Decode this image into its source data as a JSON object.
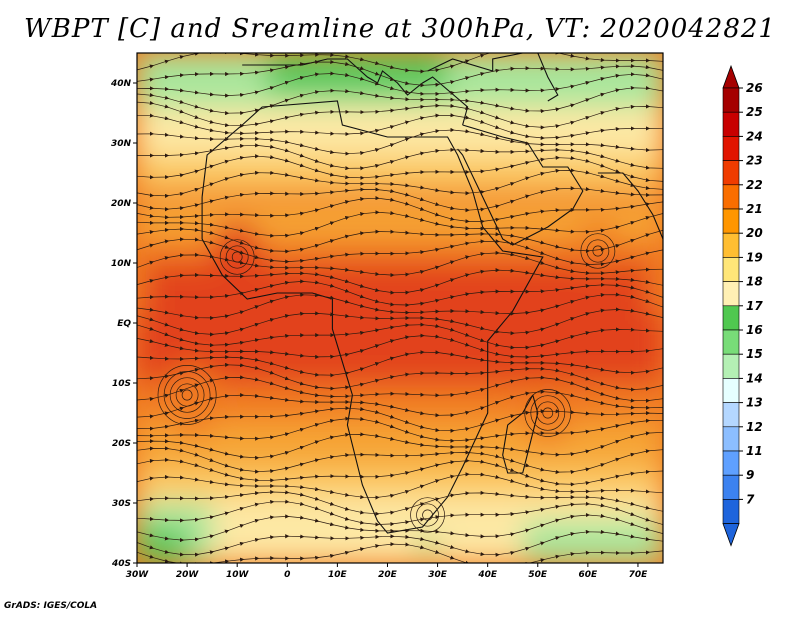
{
  "title": "WBPT [C] and Sreamline at 300hPa, VT: 2020042821",
  "credit": "GrADS: IGES/COLA",
  "map": {
    "variable": "WBPT",
    "units": "C",
    "level": "300hPa",
    "valid_time": "2020042821",
    "lon_range": [
      -30,
      75
    ],
    "lat_range": [
      -40,
      45
    ],
    "lon_ticks": [
      "30W",
      "20W",
      "10W",
      "0",
      "10E",
      "20E",
      "30E",
      "40E",
      "50E",
      "60E",
      "70E"
    ],
    "lat_ticks": [
      "40N",
      "30N",
      "20N",
      "10N",
      "EQ",
      "10S",
      "20S",
      "30S",
      "40S"
    ]
  },
  "colorbar": {
    "levels": [
      "26",
      "25",
      "24",
      "23",
      "22",
      "21",
      "20",
      "19",
      "18",
      "17",
      "16",
      "15",
      "14",
      "13",
      "12",
      "11",
      "9",
      "7"
    ],
    "colors": [
      "#a50000",
      "#c80000",
      "#e11400",
      "#f03c00",
      "#fa6e00",
      "#ff9600",
      "#ffbe32",
      "#ffe678",
      "#fff0b4",
      "#50c850",
      "#78dc78",
      "#b4f0b4",
      "#e6ffff",
      "#b4d7ff",
      "#8cbeff",
      "#5fa0ff",
      "#3c82f0",
      "#1e64dc"
    ],
    "top_arrow_color": "#a50000",
    "bottom_arrow_color": "#1e64dc"
  },
  "palette": {
    "core_red": "#e2421a",
    "orange": "#f07a22",
    "amber": "#f6a436",
    "light_orange": "#fbc862",
    "pale_yellow": "#fde8a4",
    "pale_cream": "#fff3c8",
    "light_green": "#a8e69c",
    "green": "#5cc85c",
    "coast_color": "#111111",
    "streamline_color": "#2b1a10"
  }
}
